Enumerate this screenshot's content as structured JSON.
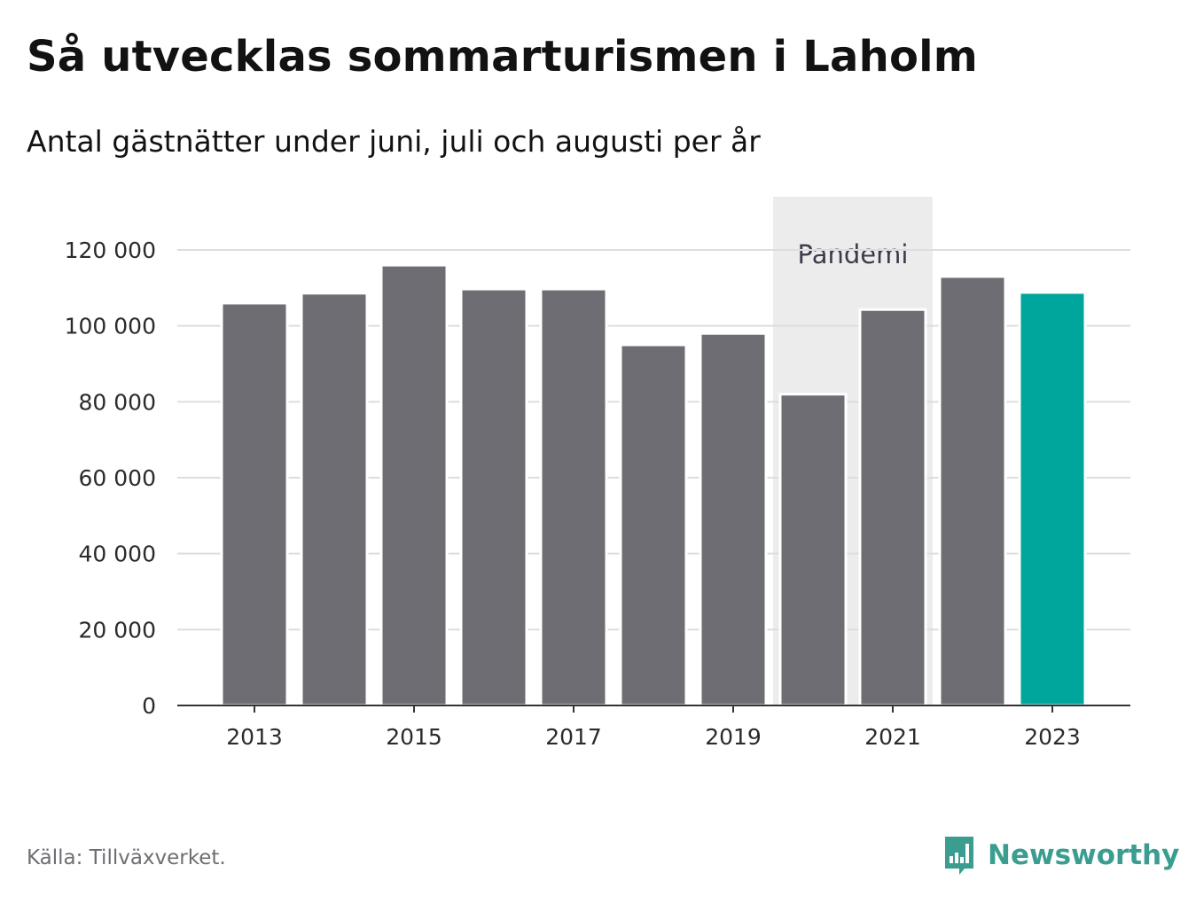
{
  "title": "Så utvecklas sommarturismen i Laholm",
  "subtitle": "Antal gästnätter under juni, juli och augusti per år",
  "source": "Källa: Tillväxverket.",
  "brand": {
    "name": "Newsworthy",
    "icon": "newsworthy-logo-icon",
    "color": "#3a9d8f"
  },
  "colors": {
    "bar": "#6e6d73",
    "highlight": "#00a59b",
    "grid": "#dddddd",
    "band": "#ececec"
  },
  "chart_data": {
    "type": "bar",
    "title": "Så utvecklas sommarturismen i Laholm",
    "subtitle": "Antal gästnätter under juni, juli och augusti per år",
    "xlabel": "",
    "ylabel": "",
    "categories": [
      "2013",
      "2014",
      "2015",
      "2016",
      "2017",
      "2018",
      "2019",
      "2020",
      "2021",
      "2022",
      "2023"
    ],
    "values": [
      106000,
      108600,
      116000,
      109700,
      109700,
      95000,
      98000,
      82000,
      104300,
      113000,
      108800
    ],
    "highlight_category": "2023",
    "x_tick_labels": [
      "2013",
      "2015",
      "2017",
      "2019",
      "2021",
      "2023"
    ],
    "y_ticks": [
      0,
      20000,
      40000,
      60000,
      80000,
      100000,
      120000
    ],
    "y_tick_labels": [
      "0",
      "20 000",
      "40 000",
      "60 000",
      "80 000",
      "100 000",
      "120 000"
    ],
    "ylim": [
      0,
      120000
    ],
    "grid": true,
    "legend": "none",
    "annotations": [
      {
        "text": "Pandemi",
        "from": "2020",
        "to": "2021"
      }
    ]
  }
}
